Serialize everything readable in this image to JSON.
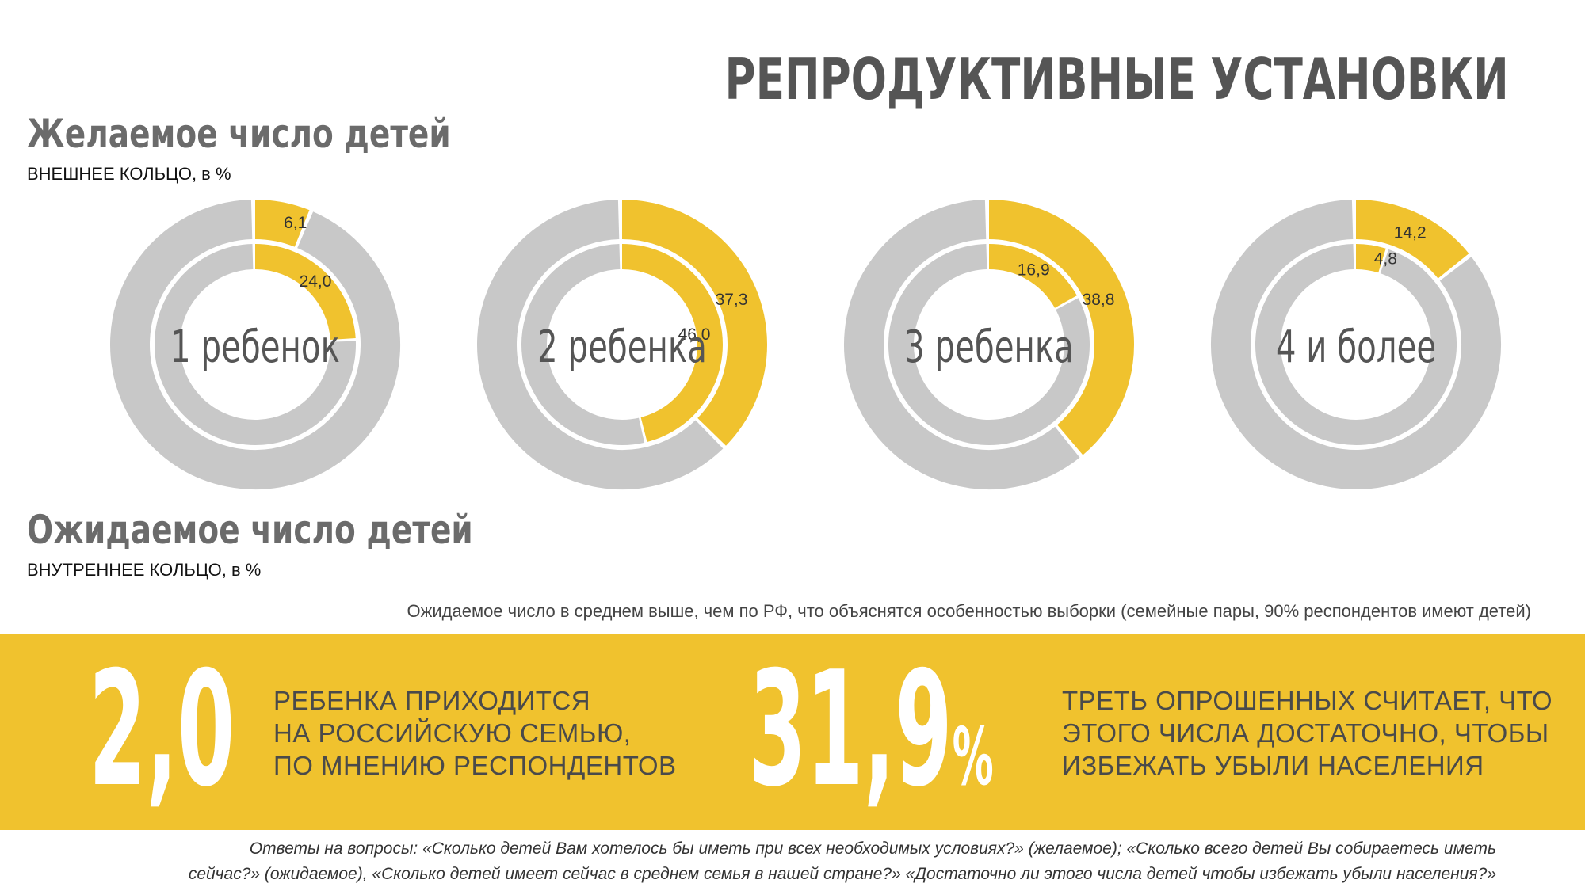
{
  "title": "РЕПРОДУКТИВНЫЕ УСТАНОВКИ",
  "desired": {
    "title": "Желаемое число детей",
    "subtitle": "ВНЕШНЕЕ КОЛЬЦО, в %"
  },
  "expected": {
    "title": "Ожидаемое число детей",
    "subtitle": "ВНУТРЕННЕЕ КОЛЬЦО, в %"
  },
  "note": "Ожидаемое число в среднем выше, чем по РФ, что объяснятся особенностью выборки (семейные пары, 90% респондентов имеют детей)",
  "stats": [
    {
      "value": "2,0",
      "suffix": "",
      "lines": [
        "РЕБЕНКА ПРИХОДИТСЯ",
        "НА РОССИЙСКУЮ СЕМЬЮ,",
        "ПО МНЕНИЮ РЕСПОНДЕНТОВ"
      ]
    },
    {
      "value": "31,9",
      "suffix": "%",
      "lines": [
        "ТРЕТЬ ОПРОШЕННЫХ СЧИТАЕТ, ЧТО",
        "ЭТОГО ЧИСЛА ДОСТАТОЧНО, ЧТОБЫ",
        "ИЗБЕЖАТЬ УБЫЛИ НАСЕЛЕНИЯ"
      ]
    }
  ],
  "footnote": [
    "Ответы на вопросы: «Сколько детей Вам хотелось бы иметь при всех необходимых условиях?» (желаемое); «Сколько всего детей Вы собираетесь иметь",
    "сейчас?» (ожидаемое), «Сколько детей имеет сейчас в среднем семья в нашей стране?» «Достаточно ли этого числа детей чтобы избежать убыли населения?»"
  ],
  "colors": {
    "accent": "#f0c22e",
    "ring": "#c8c8c8",
    "text": "#555555"
  },
  "chart_data": {
    "type": "pie",
    "categories": [
      "1 ребенок",
      "2 ребенка",
      "3 ребенка",
      "4 и более"
    ],
    "series": [
      {
        "ring": "outer",
        "values": [
          6.1,
          37.3,
          38.8,
          14.2
        ],
        "labels": [
          "6,1",
          "37,3",
          "38,8",
          "14,2"
        ]
      },
      {
        "ring": "inner",
        "values": [
          24.0,
          46.0,
          16.9,
          4.8
        ],
        "labels": [
          "24,0",
          "46,0",
          "16,9",
          "4,8"
        ]
      }
    ]
  }
}
